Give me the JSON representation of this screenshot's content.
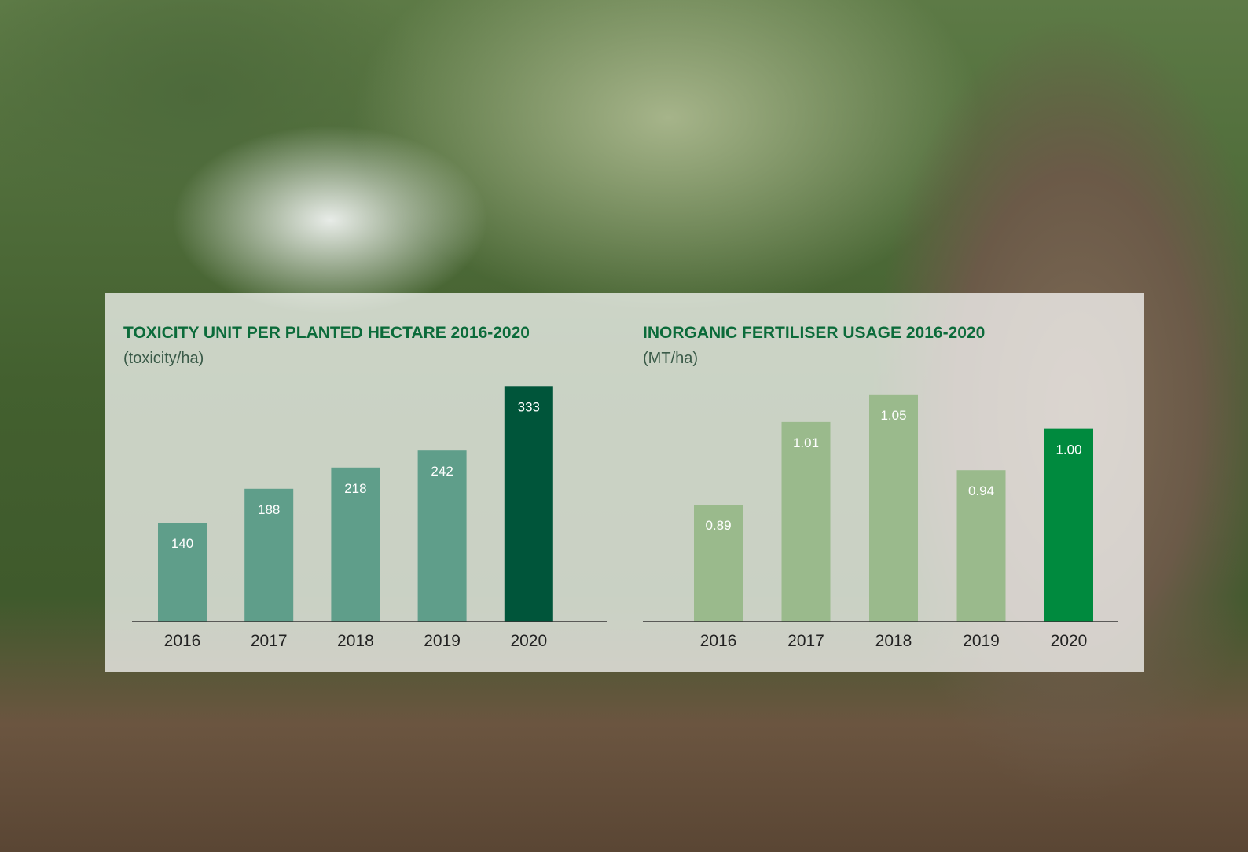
{
  "chart_data": [
    {
      "type": "bar",
      "title": "TOXICITY UNIT PER PLANTED HECTARE 2016-2020",
      "subtitle": "(toxicity/ha)",
      "categories": [
        "2016",
        "2017",
        "2018",
        "2019",
        "2020"
      ],
      "values": [
        140,
        188,
        218,
        242,
        333
      ],
      "colors": [
        "#5f9e8a",
        "#5f9e8a",
        "#5f9e8a",
        "#5f9e8a",
        "#00553a"
      ],
      "ylim": [
        0,
        370
      ]
    },
    {
      "type": "bar",
      "title": "INORGANIC FERTILISER USAGE 2016-2020",
      "subtitle": "(MT/ha)",
      "categories": [
        "2016",
        "2017",
        "2018",
        "2019",
        "2020"
      ],
      "values": [
        0.89,
        1.01,
        1.05,
        0.94,
        1.0
      ],
      "value_labels": [
        "0.89",
        "1.01",
        "1.05",
        "0.94",
        "1.00"
      ],
      "colors": [
        "#9aba8c",
        "#9aba8c",
        "#9aba8c",
        "#9aba8c",
        "#008a3e"
      ],
      "ylim": [
        0.72,
        1.1
      ]
    }
  ]
}
